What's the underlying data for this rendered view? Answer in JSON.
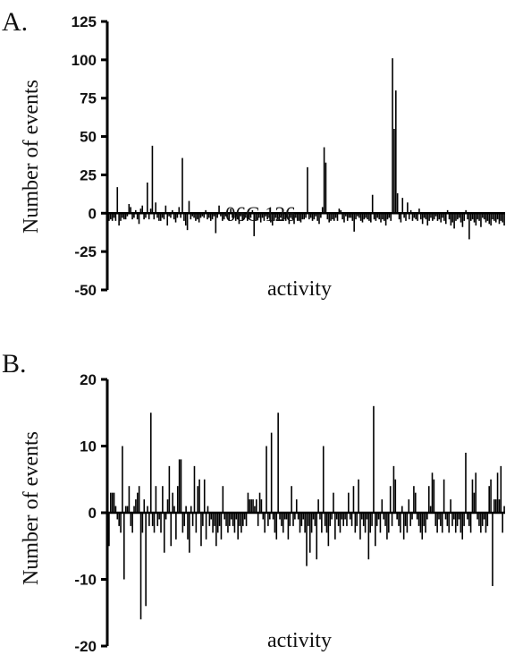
{
  "figure": {
    "panels": [
      {
        "letter": "A."
      },
      {
        "letter": "B."
      }
    ]
  },
  "chart_data": [
    {
      "type": "bar",
      "panel_label": "A.",
      "xlabel": "activity",
      "ylabel": "Number of events",
      "ylim": [
        -50,
        125
      ],
      "yticks": [
        -50,
        -25,
        0,
        25,
        50,
        75,
        100,
        125
      ],
      "annotations": [
        {
          "text": "06C 126",
          "at_index": 114
        }
      ],
      "values": [
        -5,
        -4,
        -5,
        -3,
        -5,
        17,
        -8,
        -5,
        -3,
        -4,
        -4,
        -2,
        6,
        4,
        -4,
        -3,
        2,
        -4,
        -7,
        3,
        5,
        -4,
        -3,
        20,
        -4,
        3,
        44,
        -4,
        7,
        -3,
        -5,
        -5,
        -3,
        -4,
        5,
        -8,
        -2,
        -3,
        2,
        -4,
        -6,
        -3,
        4,
        -3,
        36,
        -5,
        -8,
        -11,
        8,
        -4,
        -2,
        -3,
        -5,
        -4,
        -6,
        -3,
        -2,
        -3,
        2,
        -4,
        -3,
        -5,
        -4,
        -2,
        -13,
        -3,
        5,
        -2,
        -5,
        -4,
        -2,
        -3,
        -5,
        3,
        -3,
        -3,
        -5,
        -4,
        -7,
        -2,
        -5,
        -4,
        -3,
        -5,
        -4,
        -3,
        2,
        -15,
        -5,
        -4,
        -3,
        -6,
        -3,
        -5,
        -2,
        -4,
        -3,
        -6,
        -8,
        -5,
        -3,
        -4,
        -5,
        -3,
        -5,
        -4,
        -5,
        2,
        -7,
        -3,
        -4,
        -7,
        -3,
        -5,
        -5,
        -6,
        -4,
        -4,
        -3,
        30,
        -4,
        -3,
        -5,
        -4,
        -2,
        -5,
        -7,
        -3,
        4,
        43,
        33,
        -4,
        -6,
        -5,
        -4,
        -5,
        -3,
        -5,
        3,
        2,
        -4,
        -6,
        -2,
        -5,
        -3,
        -3,
        -5,
        -12,
        -4,
        -2,
        -3,
        -5,
        -6,
        -4,
        -3,
        -4,
        -5,
        -6,
        12,
        -4,
        -5,
        -3,
        -4,
        -6,
        -4,
        -5,
        -8,
        -4,
        -3,
        -5,
        101,
        55,
        80,
        13,
        -4,
        -6,
        10,
        -3,
        -5,
        7,
        -4,
        2,
        -5,
        -3,
        -4,
        -5,
        3,
        -4,
        -7,
        -3,
        -4,
        -8,
        -5,
        -3,
        -5,
        -4,
        -2,
        -5,
        -4,
        -6,
        -3,
        -5,
        -7,
        2,
        -4,
        -8,
        -6,
        -10,
        -5,
        -4,
        -3,
        -6,
        -9,
        -5,
        2,
        -4,
        -17,
        -5,
        -4,
        -6,
        -8,
        -4,
        -5,
        -9,
        -3,
        -4,
        -6,
        -5,
        -7,
        -8,
        -4,
        -5,
        -6,
        -4,
        -7,
        -5,
        -6,
        -8
      ],
      "tick_label_values": [
        "125",
        "100",
        "75",
        "50",
        "25",
        "0",
        "-25",
        "-50"
      ]
    },
    {
      "type": "bar",
      "panel_label": "B.",
      "xlabel": "activity",
      "ylabel": "Number of events",
      "ylim": [
        -20,
        20
      ],
      "yticks": [
        -20,
        -10,
        0,
        10,
        20
      ],
      "values": [
        -5,
        3,
        3,
        3,
        1,
        -1,
        -2,
        -3,
        10,
        -10,
        1,
        1,
        4,
        -2,
        -3,
        1,
        2,
        3,
        4,
        -16,
        -3,
        2,
        -14,
        1,
        -2,
        15,
        -2,
        -3,
        4,
        -2,
        -1,
        -3,
        4,
        -6,
        -1,
        2,
        7,
        -5,
        3,
        1,
        -4,
        4,
        8,
        8,
        -3,
        -2,
        1,
        -4,
        -6,
        1,
        -2,
        7,
        -3,
        4,
        5,
        -5,
        -2,
        5,
        -4,
        1,
        -2,
        -1,
        -3,
        -2,
        -5,
        -3,
        -2,
        -4,
        4,
        -1,
        -2,
        -3,
        -2,
        -1,
        -2,
        -3,
        -1,
        -4,
        -2,
        -3,
        -2,
        -1,
        -2,
        3,
        2,
        2,
        2,
        1,
        2,
        -2,
        3,
        2,
        -1,
        -3,
        10,
        -2,
        -1,
        12,
        -1,
        -3,
        -4,
        15,
        -1,
        -2,
        -3,
        -1,
        -1,
        -4,
        -2,
        4,
        -2,
        -1,
        2,
        -1,
        -3,
        -2,
        -1,
        -3,
        -8,
        -2,
        -6,
        -3,
        -1,
        -2,
        -7,
        2,
        -1,
        -3,
        10,
        -2,
        -3,
        -5,
        -2,
        -1,
        3,
        -4,
        -1,
        -2,
        -3,
        -1,
        -2,
        -1,
        -2,
        3,
        -1,
        -2,
        4,
        -3,
        -2,
        5,
        -4,
        -1,
        -2,
        -3,
        -1,
        -7,
        -3,
        -2,
        16,
        -5,
        -2,
        -1,
        -3,
        2,
        -1,
        -2,
        -4,
        -3,
        4,
        -2,
        7,
        5,
        -1,
        -2,
        -3,
        1,
        -4,
        -2,
        -3,
        2,
        -2,
        -1,
        4,
        3,
        -1,
        -2,
        -3,
        -4,
        -2,
        -3,
        -1,
        4,
        1,
        6,
        5,
        -2,
        -3,
        -1,
        -2,
        -3,
        5,
        -1,
        -2,
        -3,
        2,
        -2,
        -1,
        -3,
        -2,
        -1,
        -3,
        -4,
        -2,
        9,
        -1,
        -2,
        -3,
        5,
        3,
        6,
        -1,
        -2,
        -3,
        -2,
        -1,
        -3,
        -2,
        4,
        5,
        -11,
        2,
        2,
        6,
        2,
        7,
        -3,
        1
      ]
    }
  ]
}
